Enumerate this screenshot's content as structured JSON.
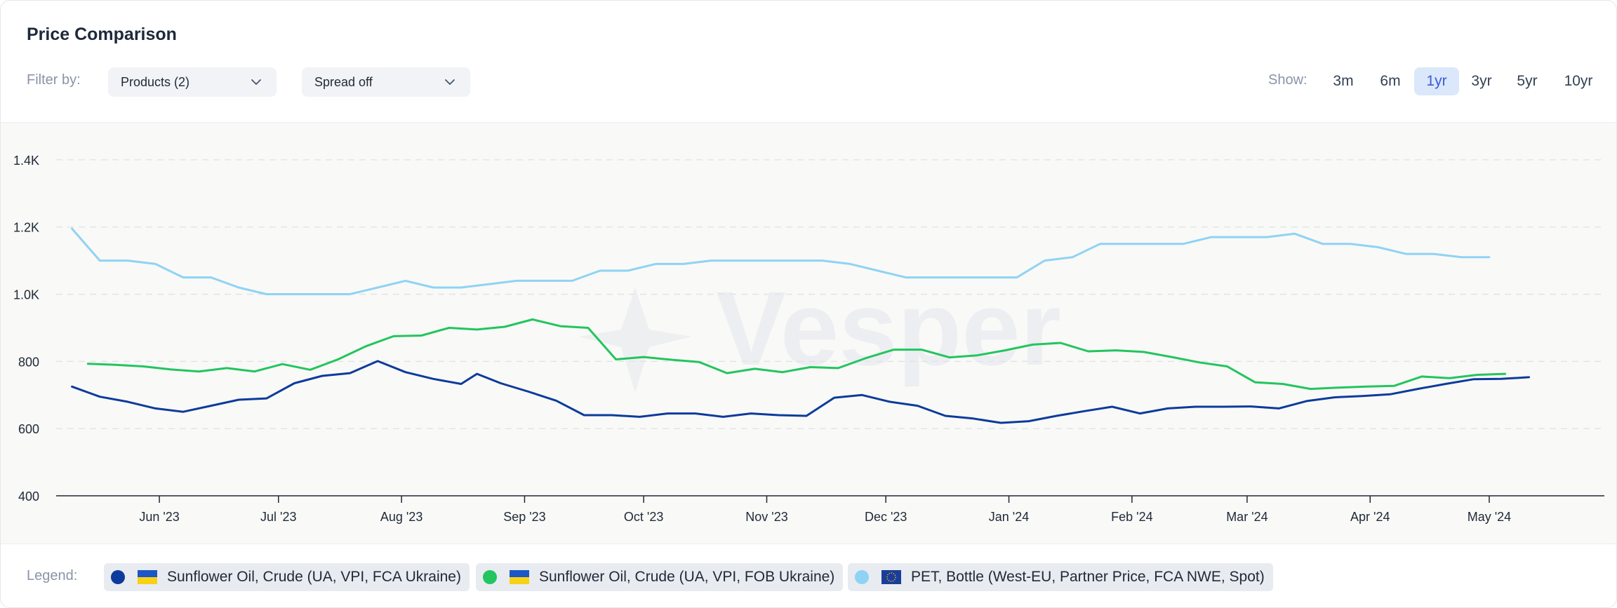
{
  "header": {
    "title": "Price Comparison",
    "filter_label": "Filter by:",
    "products_dropdown": "Products (2)",
    "spread_dropdown": "Spread off",
    "show_label": "Show:",
    "ranges": [
      "3m",
      "6m",
      "1yr",
      "3yr",
      "5yr",
      "10yr"
    ],
    "active_range": "1yr"
  },
  "watermark": "Vesper",
  "legend": {
    "label": "Legend:",
    "items": [
      {
        "name": "Sunflower Oil, Crude (UA, VPI, FCA Ukraine)",
        "color": "#0d3b9c",
        "flag": "ukraine-flag-icon"
      },
      {
        "name": "Sunflower Oil, Crude (UA, VPI, FOB Ukraine)",
        "color": "#22c55e",
        "flag": "ukraine-flag-icon"
      },
      {
        "name": "PET, Bottle (West-EU, Partner Price, FCA NWE, Spot)",
        "color": "#8fd3f4",
        "flag": "eu-flag-icon"
      }
    ]
  },
  "chart_data": {
    "type": "line",
    "x_axis": {
      "type": "date",
      "range": [
        "2023-05-06",
        "2024-05-30"
      ],
      "tick_labels": [
        "Jun '23",
        "Jul '23",
        "Aug '23",
        "Sep '23",
        "Oct '23",
        "Nov '23",
        "Dec '23",
        "Jan '24",
        "Feb '24",
        "Mar '24",
        "Apr '24",
        "May '24"
      ],
      "tick_dates": [
        "2023-06-01",
        "2023-07-01",
        "2023-08-01",
        "2023-09-01",
        "2023-10-01",
        "2023-11-01",
        "2023-12-01",
        "2024-01-01",
        "2024-02-01",
        "2024-03-01",
        "2024-04-01",
        "2024-05-01"
      ]
    },
    "y_axis": {
      "range": [
        400,
        1500
      ],
      "ticks": [
        400,
        600,
        800,
        1000,
        1200,
        1400
      ],
      "tick_labels": [
        "400",
        "600",
        "800",
        "1.0K",
        "1.2K",
        "1.4K"
      ],
      "grid": true
    },
    "series": [
      {
        "name": "Sunflower Oil, Crude (UA, VPI, FCA Ukraine)",
        "color": "#0d3b9c",
        "points": [
          [
            "2023-05-10",
            725
          ],
          [
            "2023-05-17",
            695
          ],
          [
            "2023-05-24",
            680
          ],
          [
            "2023-05-31",
            660
          ],
          [
            "2023-06-07",
            650
          ],
          [
            "2023-06-14",
            668
          ],
          [
            "2023-06-21",
            686
          ],
          [
            "2023-06-28",
            690
          ],
          [
            "2023-07-05",
            735
          ],
          [
            "2023-07-12",
            757
          ],
          [
            "2023-07-19",
            765
          ],
          [
            "2023-07-26",
            801
          ],
          [
            "2023-08-02",
            768
          ],
          [
            "2023-08-09",
            748
          ],
          [
            "2023-08-16",
            733
          ],
          [
            "2023-08-20",
            763
          ],
          [
            "2023-08-26",
            735
          ],
          [
            "2023-09-02",
            710
          ],
          [
            "2023-09-09",
            683
          ],
          [
            "2023-09-16",
            640
          ],
          [
            "2023-09-23",
            640
          ],
          [
            "2023-09-30",
            635
          ],
          [
            "2023-10-07",
            645
          ],
          [
            "2023-10-14",
            645
          ],
          [
            "2023-10-21",
            635
          ],
          [
            "2023-10-28",
            645
          ],
          [
            "2023-11-04",
            640
          ],
          [
            "2023-11-11",
            638
          ],
          [
            "2023-11-18",
            692
          ],
          [
            "2023-11-25",
            700
          ],
          [
            "2023-12-02",
            680
          ],
          [
            "2023-12-09",
            668
          ],
          [
            "2023-12-16",
            638
          ],
          [
            "2023-12-23",
            630
          ],
          [
            "2023-12-30",
            617
          ],
          [
            "2024-01-06",
            622
          ],
          [
            "2024-01-13",
            638
          ],
          [
            "2024-01-20",
            652
          ],
          [
            "2024-01-27",
            665
          ],
          [
            "2024-02-03",
            645
          ],
          [
            "2024-02-10",
            660
          ],
          [
            "2024-02-17",
            665
          ],
          [
            "2024-02-24",
            665
          ],
          [
            "2024-03-02",
            666
          ],
          [
            "2024-03-09",
            660
          ],
          [
            "2024-03-16",
            682
          ],
          [
            "2024-03-23",
            693
          ],
          [
            "2024-03-30",
            697
          ],
          [
            "2024-04-06",
            702
          ],
          [
            "2024-04-13",
            718
          ],
          [
            "2024-04-20",
            733
          ],
          [
            "2024-04-27",
            747
          ],
          [
            "2024-05-04",
            748
          ],
          [
            "2024-05-11",
            753
          ]
        ]
      },
      {
        "name": "Sunflower Oil, Crude (UA, VPI, FOB Ukraine)",
        "color": "#22c55e",
        "points": [
          [
            "2023-05-14",
            793
          ],
          [
            "2023-05-21",
            790
          ],
          [
            "2023-05-28",
            785
          ],
          [
            "2023-06-04",
            776
          ],
          [
            "2023-06-11",
            770
          ],
          [
            "2023-06-18",
            780
          ],
          [
            "2023-06-25",
            770
          ],
          [
            "2023-07-02",
            792
          ],
          [
            "2023-07-09",
            775
          ],
          [
            "2023-07-16",
            806
          ],
          [
            "2023-07-23",
            845
          ],
          [
            "2023-07-30",
            875
          ],
          [
            "2023-08-06",
            877
          ],
          [
            "2023-08-13",
            900
          ],
          [
            "2023-08-20",
            895
          ],
          [
            "2023-08-27",
            903
          ],
          [
            "2023-09-03",
            925
          ],
          [
            "2023-09-10",
            905
          ],
          [
            "2023-09-17",
            900
          ],
          [
            "2023-09-24",
            806
          ],
          [
            "2023-10-01",
            813
          ],
          [
            "2023-10-08",
            805
          ],
          [
            "2023-10-15",
            798
          ],
          [
            "2023-10-22",
            765
          ],
          [
            "2023-10-29",
            778
          ],
          [
            "2023-11-05",
            768
          ],
          [
            "2023-11-12",
            783
          ],
          [
            "2023-11-19",
            780
          ],
          [
            "2023-11-26",
            810
          ],
          [
            "2023-12-03",
            835
          ],
          [
            "2023-12-10",
            835
          ],
          [
            "2023-12-17",
            812
          ],
          [
            "2023-12-24",
            818
          ],
          [
            "2023-12-31",
            833
          ],
          [
            "2024-01-07",
            850
          ],
          [
            "2024-01-14",
            855
          ],
          [
            "2024-01-21",
            830
          ],
          [
            "2024-01-28",
            833
          ],
          [
            "2024-02-04",
            828
          ],
          [
            "2024-02-11",
            813
          ],
          [
            "2024-02-18",
            797
          ],
          [
            "2024-02-25",
            785
          ],
          [
            "2024-03-03",
            738
          ],
          [
            "2024-03-10",
            733
          ],
          [
            "2024-03-17",
            718
          ],
          [
            "2024-03-24",
            722
          ],
          [
            "2024-03-31",
            725
          ],
          [
            "2024-04-07",
            727
          ],
          [
            "2024-04-14",
            755
          ],
          [
            "2024-04-21",
            750
          ],
          [
            "2024-04-28",
            760
          ],
          [
            "2024-05-05",
            763
          ]
        ]
      },
      {
        "name": "PET, Bottle (West-EU, Partner Price, FCA NWE, Spot)",
        "color": "#8fd3f4",
        "points": [
          [
            "2023-05-10",
            1195
          ],
          [
            "2023-05-17",
            1100
          ],
          [
            "2023-05-24",
            1100
          ],
          [
            "2023-05-31",
            1090
          ],
          [
            "2023-06-07",
            1050
          ],
          [
            "2023-06-14",
            1050
          ],
          [
            "2023-06-21",
            1020
          ],
          [
            "2023-06-28",
            1000
          ],
          [
            "2023-07-05",
            1000
          ],
          [
            "2023-07-12",
            1000
          ],
          [
            "2023-07-19",
            1000
          ],
          [
            "2023-07-26",
            1020
          ],
          [
            "2023-08-02",
            1040
          ],
          [
            "2023-08-09",
            1020
          ],
          [
            "2023-08-16",
            1020
          ],
          [
            "2023-08-23",
            1030
          ],
          [
            "2023-08-30",
            1040
          ],
          [
            "2023-09-06",
            1040
          ],
          [
            "2023-09-13",
            1040
          ],
          [
            "2023-09-20",
            1070
          ],
          [
            "2023-09-27",
            1070
          ],
          [
            "2023-10-04",
            1090
          ],
          [
            "2023-10-11",
            1090
          ],
          [
            "2023-10-18",
            1100
          ],
          [
            "2023-10-25",
            1100
          ],
          [
            "2023-11-01",
            1100
          ],
          [
            "2023-11-08",
            1100
          ],
          [
            "2023-11-15",
            1100
          ],
          [
            "2023-11-22",
            1090
          ],
          [
            "2023-11-29",
            1070
          ],
          [
            "2023-12-06",
            1050
          ],
          [
            "2023-12-13",
            1050
          ],
          [
            "2023-12-20",
            1050
          ],
          [
            "2023-12-27",
            1050
          ],
          [
            "2024-01-03",
            1050
          ],
          [
            "2024-01-10",
            1100
          ],
          [
            "2024-01-17",
            1110
          ],
          [
            "2024-01-24",
            1150
          ],
          [
            "2024-01-31",
            1150
          ],
          [
            "2024-02-07",
            1150
          ],
          [
            "2024-02-14",
            1150
          ],
          [
            "2024-02-21",
            1170
          ],
          [
            "2024-02-28",
            1170
          ],
          [
            "2024-03-06",
            1170
          ],
          [
            "2024-03-13",
            1180
          ],
          [
            "2024-03-20",
            1150
          ],
          [
            "2024-03-27",
            1150
          ],
          [
            "2024-04-03",
            1140
          ],
          [
            "2024-04-10",
            1120
          ],
          [
            "2024-04-17",
            1120
          ],
          [
            "2024-04-24",
            1110
          ],
          [
            "2024-05-01",
            1110
          ]
        ]
      }
    ]
  }
}
